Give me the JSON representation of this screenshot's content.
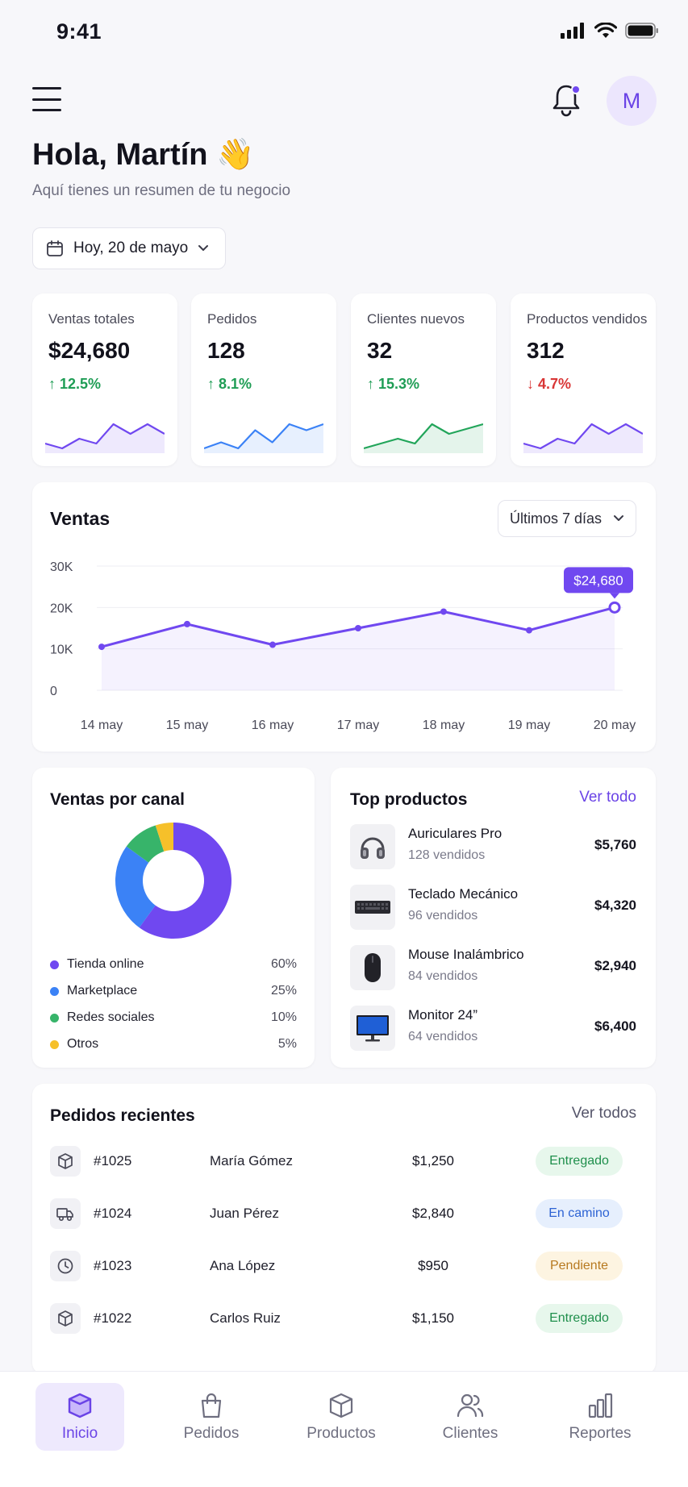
{
  "status": {
    "time": "9:41"
  },
  "header": {
    "avatar_initial": "M",
    "greeting": "Hola, Martín 👋",
    "subtitle": "Aquí tienes un resumen de tu negocio",
    "date": "Hoy, 20 de mayo"
  },
  "kpis": [
    {
      "label": "Ventas totales",
      "value": "$24,680",
      "change": "12.5%",
      "direction": "up",
      "color": "#7048f0",
      "spark": [
        4,
        3,
        5,
        4,
        8,
        6,
        8,
        6
      ]
    },
    {
      "label": "Pedidos",
      "value": "128",
      "change": "8.1%",
      "direction": "up",
      "color": "#3b82f6",
      "spark": [
        4,
        5,
        4,
        7,
        5,
        8,
        7,
        8
      ]
    },
    {
      "label": "Clientes nuevos",
      "value": "32",
      "change": "15.3%",
      "direction": "up",
      "color": "#22a55a",
      "spark": [
        3,
        4,
        5,
        4,
        8,
        6,
        7,
        8
      ]
    },
    {
      "label": "Productos vendidos",
      "value": "312",
      "change": "4.7%",
      "direction": "down",
      "color": "#7048f0",
      "spark": [
        4,
        3,
        5,
        4,
        8,
        6,
        8,
        6
      ]
    }
  ],
  "sales": {
    "title": "Ventas",
    "range": "Últimos 7 días",
    "tooltip": "$24,680",
    "chart_data": {
      "type": "line",
      "categories": [
        "14 may",
        "15 may",
        "16 may",
        "17 may",
        "18 may",
        "19 may",
        "20 may"
      ],
      "values": [
        10500,
        16000,
        11000,
        15000,
        19000,
        14500,
        20000
      ],
      "ylim": [
        0,
        30000
      ],
      "yticks": [
        "0",
        "10K",
        "20K",
        "30K"
      ],
      "grid": true,
      "color": "#7048f0"
    }
  },
  "channels": {
    "title": "Ventas por canal",
    "chart_data": {
      "type": "pie",
      "items": [
        {
          "name": "Tienda online",
          "value": 60,
          "label": "60%",
          "color": "#7048f0"
        },
        {
          "name": "Marketplace",
          "value": 25,
          "label": "25%",
          "color": "#3b82f6"
        },
        {
          "name": "Redes sociales",
          "value": 10,
          "label": "10%",
          "color": "#37b46a"
        },
        {
          "name": "Otros",
          "value": 5,
          "label": "5%",
          "color": "#f6c02a"
        }
      ]
    }
  },
  "top_products": {
    "title": "Top productos",
    "see_all": "Ver todo",
    "items": [
      {
        "name": "Auriculares Pro",
        "sold": "128 vendidos",
        "amount": "$5,760",
        "icon": "headphones-icon"
      },
      {
        "name": "Teclado Mecánico",
        "sold": "96 vendidos",
        "amount": "$4,320",
        "icon": "keyboard-icon"
      },
      {
        "name": "Mouse Inalámbrico",
        "sold": "84 vendidos",
        "amount": "$2,940",
        "icon": "mouse-icon"
      },
      {
        "name": "Monitor 24”",
        "sold": "64 vendidos",
        "amount": "$6,400",
        "icon": "monitor-icon"
      }
    ]
  },
  "orders": {
    "title": "Pedidos recientes",
    "see_all": "Ver todos",
    "rows": [
      {
        "id": "#1025",
        "customer": "María Gómez",
        "amount": "$1,250",
        "status": "Entregado",
        "status_color": "green",
        "icon": "box-icon"
      },
      {
        "id": "#1024",
        "customer": "Juan Pérez",
        "amount": "$2,840",
        "status": "En camino",
        "status_color": "blue",
        "icon": "truck-icon"
      },
      {
        "id": "#1023",
        "customer": "Ana López",
        "amount": "$950",
        "status": "Pendiente",
        "status_color": "yellow",
        "icon": "clock-icon"
      },
      {
        "id": "#1022",
        "customer": "Carlos Ruiz",
        "amount": "$1,150",
        "status": "Entregado",
        "status_color": "green",
        "icon": "box-icon"
      }
    ]
  },
  "nav": {
    "items": [
      {
        "label": "Inicio",
        "icon": "home-box-icon",
        "active": true
      },
      {
        "label": "Pedidos",
        "icon": "bag-icon",
        "active": false
      },
      {
        "label": "Productos",
        "icon": "cube-icon",
        "active": false
      },
      {
        "label": "Clientes",
        "icon": "users-icon",
        "active": false
      },
      {
        "label": "Reportes",
        "icon": "chart-bars-icon",
        "active": false
      }
    ]
  },
  "colors": {
    "accent": "#7048f0",
    "success": "#1f9d55",
    "danger": "#d93636"
  }
}
